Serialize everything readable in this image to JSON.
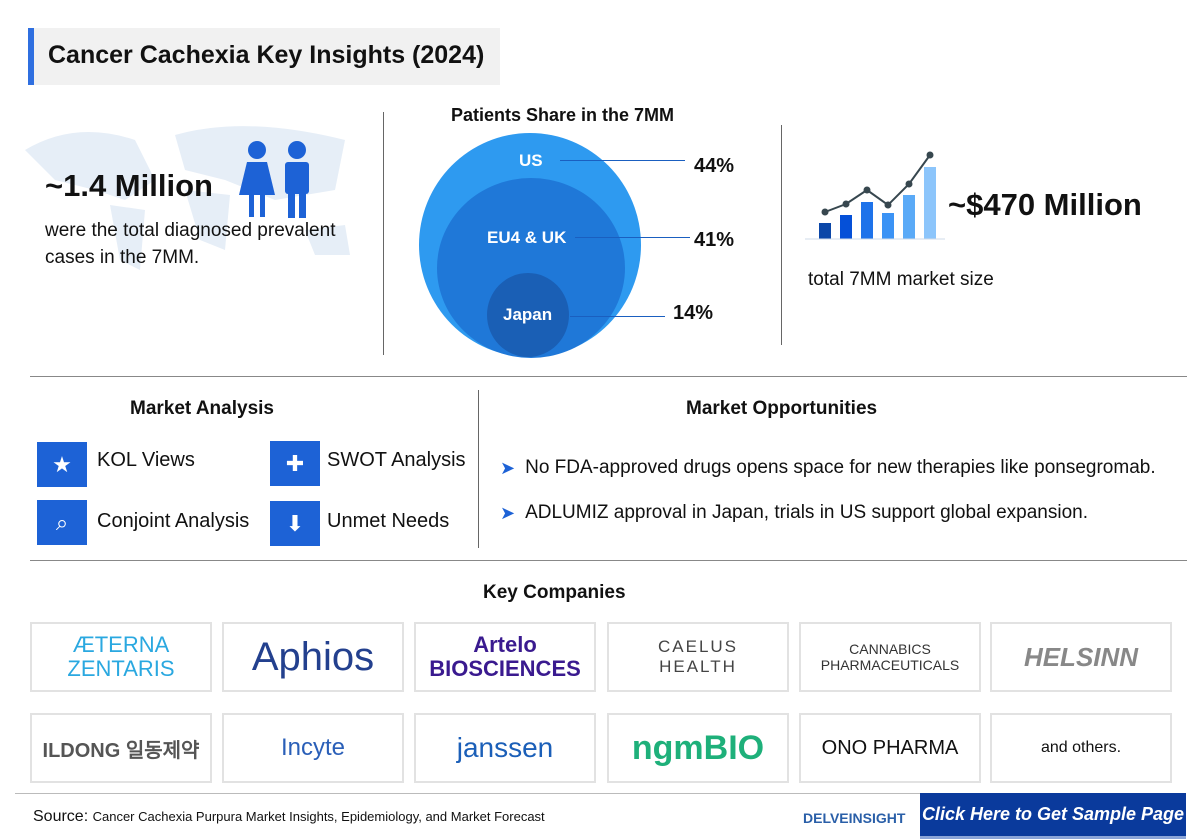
{
  "title": "Cancer Cachexia Key Insights (2024)",
  "prevalence": {
    "value": "~1.4 Million",
    "text": "were the total diagnosed prevalent cases in the 7MM."
  },
  "patients_share": {
    "title": "Patients Share in the 7MM",
    "regions": [
      {
        "label": "US",
        "pct": "44%"
      },
      {
        "label": "EU4 & UK",
        "pct": "41%"
      },
      {
        "label": "Japan",
        "pct": "14%"
      }
    ]
  },
  "market": {
    "value": "~$470 Million",
    "text": "total 7MM market size"
  },
  "market_analysis": {
    "title": "Market Analysis",
    "items": [
      {
        "label": "KOL Views",
        "icon": "kol-icon"
      },
      {
        "label": "SWOT Analysis",
        "icon": "swot-icon"
      },
      {
        "label": "Conjoint Analysis",
        "icon": "analysis-icon"
      },
      {
        "label": "Unmet Needs",
        "icon": "hand-download-icon"
      }
    ]
  },
  "market_opportunities": {
    "title": "Market Opportunities",
    "items": [
      "No FDA-approved drugs opens space for new therapies like ponsegromab.",
      "ADLUMIZ approval in Japan, trials in US support global expansion."
    ]
  },
  "key_companies": {
    "title": "Key Companies",
    "logos": [
      "ÆTERNA ZENTARIS",
      "Aphios",
      "Artelo BIOSCIENCES",
      "CAELUS HEALTH",
      "CANNABICS PHARMACEUTICALS",
      "HELSINN",
      "ILDONG 일동제약",
      "Incyte",
      "janssen",
      "ngmBIO",
      "ONO PHARMA"
    ],
    "others": "and others."
  },
  "footer": {
    "source_label": "Source:",
    "source_text": "Cancer Cachexia Purpura Market Insights, Epidemiology, and Market Forecast",
    "brand": "DELVEINSIGHT",
    "cta": "Click Here to Get Sample Page"
  },
  "colors": {
    "accent": "#1d62d6",
    "cta": "#0a3a9c",
    "us": "#2e9af0",
    "eu": "#1f78d8",
    "japan": "#1a5fb5"
  }
}
